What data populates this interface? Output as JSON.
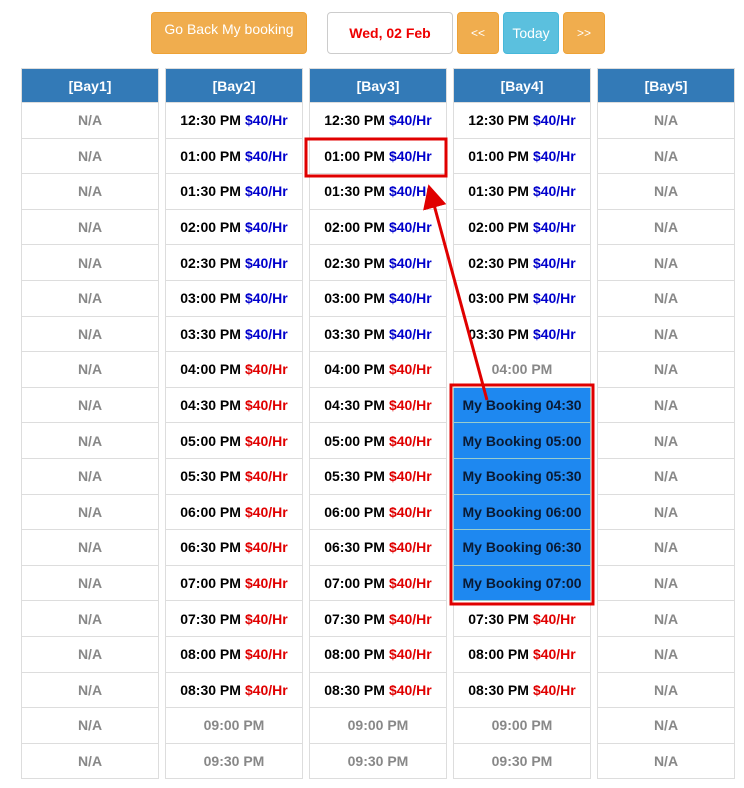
{
  "toolbar": {
    "back_label": "Go Back My booking",
    "date": "Wed, 02 Feb",
    "prev_label": "<<",
    "today_label": "Today",
    "next_label": ">>"
  },
  "colors": {
    "available_price": "#0000cc",
    "peak_price": "#e00000",
    "booking_bg": "#1e88f0",
    "header_bg": "#337ab7",
    "annotation": "#e00000"
  },
  "bays": [
    {
      "name": "[Bay1]",
      "cells": [
        [
          "na",
          "N/A"
        ],
        [
          "na",
          "N/A"
        ],
        [
          "na",
          "N/A"
        ],
        [
          "na",
          "N/A"
        ],
        [
          "na",
          "N/A"
        ],
        [
          "na",
          "N/A"
        ],
        [
          "na",
          "N/A"
        ],
        [
          "na",
          "N/A"
        ],
        [
          "na",
          "N/A"
        ],
        [
          "na",
          "N/A"
        ],
        [
          "na",
          "N/A"
        ],
        [
          "na",
          "N/A"
        ],
        [
          "na",
          "N/A"
        ],
        [
          "na",
          "N/A"
        ],
        [
          "na",
          "N/A"
        ],
        [
          "na",
          "N/A"
        ],
        [
          "na",
          "N/A"
        ],
        [
          "na",
          "N/A"
        ],
        [
          "na",
          "N/A"
        ]
      ]
    },
    {
      "name": "[Bay2]",
      "cells": [
        [
          "avail",
          "12:30 PM",
          "$40/Hr"
        ],
        [
          "avail",
          "01:00 PM",
          "$40/Hr"
        ],
        [
          "avail",
          "01:30 PM",
          "$40/Hr"
        ],
        [
          "avail",
          "02:00 PM",
          "$40/Hr"
        ],
        [
          "avail",
          "02:30 PM",
          "$40/Hr"
        ],
        [
          "avail",
          "03:00 PM",
          "$40/Hr"
        ],
        [
          "avail",
          "03:30 PM",
          "$40/Hr"
        ],
        [
          "peak",
          "04:00 PM",
          "$40/Hr"
        ],
        [
          "peak",
          "04:30 PM",
          "$40/Hr"
        ],
        [
          "peak",
          "05:00 PM",
          "$40/Hr"
        ],
        [
          "peak",
          "05:30 PM",
          "$40/Hr"
        ],
        [
          "peak",
          "06:00 PM",
          "$40/Hr"
        ],
        [
          "peak",
          "06:30 PM",
          "$40/Hr"
        ],
        [
          "peak",
          "07:00 PM",
          "$40/Hr"
        ],
        [
          "peak",
          "07:30 PM",
          "$40/Hr"
        ],
        [
          "peak",
          "08:00 PM",
          "$40/Hr"
        ],
        [
          "peak",
          "08:30 PM",
          "$40/Hr"
        ],
        [
          "closed",
          "09:00 PM"
        ],
        [
          "closed",
          "09:30 PM"
        ]
      ]
    },
    {
      "name": "[Bay3]",
      "cells": [
        [
          "avail",
          "12:30 PM",
          "$40/Hr"
        ],
        [
          "avail",
          "01:00 PM",
          "$40/Hr"
        ],
        [
          "avail",
          "01:30 PM",
          "$40/Hr"
        ],
        [
          "avail",
          "02:00 PM",
          "$40/Hr"
        ],
        [
          "avail",
          "02:30 PM",
          "$40/Hr"
        ],
        [
          "avail",
          "03:00 PM",
          "$40/Hr"
        ],
        [
          "avail",
          "03:30 PM",
          "$40/Hr"
        ],
        [
          "peak",
          "04:00 PM",
          "$40/Hr"
        ],
        [
          "peak",
          "04:30 PM",
          "$40/Hr"
        ],
        [
          "peak",
          "05:00 PM",
          "$40/Hr"
        ],
        [
          "peak",
          "05:30 PM",
          "$40/Hr"
        ],
        [
          "peak",
          "06:00 PM",
          "$40/Hr"
        ],
        [
          "peak",
          "06:30 PM",
          "$40/Hr"
        ],
        [
          "peak",
          "07:00 PM",
          "$40/Hr"
        ],
        [
          "peak",
          "07:30 PM",
          "$40/Hr"
        ],
        [
          "peak",
          "08:00 PM",
          "$40/Hr"
        ],
        [
          "peak",
          "08:30 PM",
          "$40/Hr"
        ],
        [
          "closed",
          "09:00 PM"
        ],
        [
          "closed",
          "09:30 PM"
        ]
      ]
    },
    {
      "name": "[Bay4]",
      "cells": [
        [
          "avail",
          "12:30 PM",
          "$40/Hr"
        ],
        [
          "avail",
          "01:00 PM",
          "$40/Hr"
        ],
        [
          "avail",
          "01:30 PM",
          "$40/Hr"
        ],
        [
          "avail",
          "02:00 PM",
          "$40/Hr"
        ],
        [
          "avail",
          "02:30 PM",
          "$40/Hr"
        ],
        [
          "avail",
          "03:00 PM",
          "$40/Hr"
        ],
        [
          "avail",
          "03:30 PM",
          "$40/Hr"
        ],
        [
          "closed",
          "04:00 PM"
        ],
        [
          "booking",
          "My Booking 04:30"
        ],
        [
          "booking",
          "My Booking 05:00"
        ],
        [
          "booking",
          "My Booking 05:30"
        ],
        [
          "booking",
          "My Booking 06:00"
        ],
        [
          "booking",
          "My Booking 06:30"
        ],
        [
          "booking",
          "My Booking 07:00"
        ],
        [
          "peak",
          "07:30 PM",
          "$40/Hr"
        ],
        [
          "peak",
          "08:00 PM",
          "$40/Hr"
        ],
        [
          "peak",
          "08:30 PM",
          "$40/Hr"
        ],
        [
          "closed",
          "09:00 PM"
        ],
        [
          "closed",
          "09:30 PM"
        ]
      ]
    },
    {
      "name": "[Bay5]",
      "cells": [
        [
          "na",
          "N/A"
        ],
        [
          "na",
          "N/A"
        ],
        [
          "na",
          "N/A"
        ],
        [
          "na",
          "N/A"
        ],
        [
          "na",
          "N/A"
        ],
        [
          "na",
          "N/A"
        ],
        [
          "na",
          "N/A"
        ],
        [
          "na",
          "N/A"
        ],
        [
          "na",
          "N/A"
        ],
        [
          "na",
          "N/A"
        ],
        [
          "na",
          "N/A"
        ],
        [
          "na",
          "N/A"
        ],
        [
          "na",
          "N/A"
        ],
        [
          "na",
          "N/A"
        ],
        [
          "na",
          "N/A"
        ],
        [
          "na",
          "N/A"
        ],
        [
          "na",
          "N/A"
        ],
        [
          "na",
          "N/A"
        ],
        [
          "na",
          "N/A"
        ]
      ]
    }
  ]
}
